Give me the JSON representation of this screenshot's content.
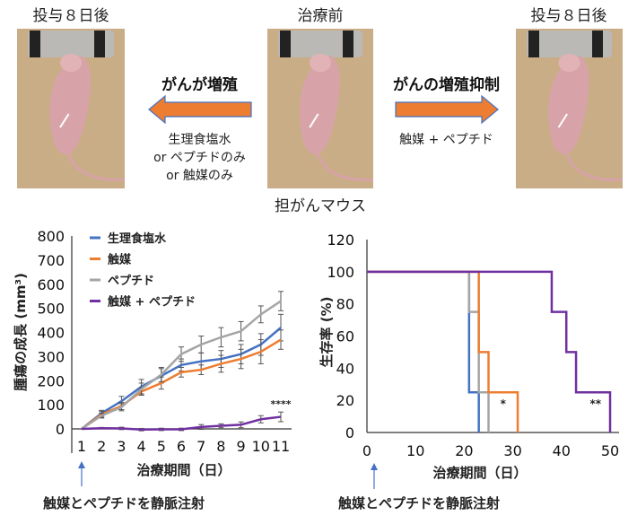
{
  "top": {
    "left_title": "投与８日後",
    "center_title": "治療前",
    "right_title": "投与８日後",
    "center_caption": "担がんマウス",
    "left_arrow_label": "がんが増殖",
    "right_arrow_label": "がんの増殖抑制",
    "left_conditions": [
      "生理食塩水",
      "or ペプチドのみ",
      "or 触媒のみ"
    ],
    "right_condition": "触媒 + ペプチド",
    "arrow_color": "#ED7D31"
  },
  "chart_data": [
    {
      "type": "line",
      "xlabel": "治療期間（日）",
      "ylabel": "腫瘍の成長 (mm³)",
      "x": [
        1,
        2,
        3,
        4,
        5,
        6,
        7,
        8,
        9,
        10,
        11
      ],
      "ylim": [
        0,
        800
      ],
      "yticks": [
        0,
        100,
        200,
        300,
        400,
        500,
        600,
        700,
        800
      ],
      "legend": "top-left",
      "annotation": "****",
      "footnote": "触媒とペプチドを静脈注射",
      "series": [
        {
          "name": "生理食塩水",
          "color": "#4472C4",
          "values": [
            0,
            65,
            115,
            175,
            220,
            265,
            280,
            290,
            310,
            350,
            420
          ],
          "err": [
            0,
            12,
            20,
            30,
            30,
            25,
            35,
            35,
            40,
            45,
            55
          ]
        },
        {
          "name": "触媒",
          "color": "#ED7D31",
          "values": [
            0,
            60,
            95,
            155,
            190,
            235,
            245,
            270,
            290,
            320,
            370
          ],
          "err": [
            0,
            12,
            15,
            15,
            25,
            20,
            20,
            35,
            40,
            50,
            40
          ]
        },
        {
          "name": "ペプチド",
          "color": "#A5A5A5",
          "values": [
            0,
            55,
            90,
            165,
            225,
            310,
            350,
            380,
            405,
            475,
            530
          ],
          "err": [
            0,
            10,
            15,
            25,
            30,
            30,
            35,
            40,
            40,
            35,
            40
          ]
        },
        {
          "name": "触媒 + ペプチド",
          "color": "#7030A0",
          "values": [
            0,
            3,
            2,
            -3,
            -2,
            -2,
            8,
            13,
            17,
            40,
            50
          ],
          "err": [
            0,
            3,
            5,
            5,
            5,
            5,
            10,
            8,
            12,
            15,
            20
          ]
        }
      ]
    },
    {
      "type": "line",
      "step": true,
      "xlabel": "治療期間（日）",
      "ylabel": "生存率 (%)",
      "xlim": [
        0,
        50
      ],
      "ylim": [
        0,
        120
      ],
      "xticks": [
        0,
        10,
        20,
        30,
        40,
        50
      ],
      "yticks": [
        0,
        20,
        40,
        60,
        80,
        100,
        120
      ],
      "footnote": "触媒とペプチドを静脈注射",
      "series": [
        {
          "color": "#4472C4",
          "points": [
            [
              0,
              100
            ],
            [
              21,
              100
            ],
            [
              21,
              25
            ],
            [
              23,
              25
            ],
            [
              23,
              0
            ]
          ]
        },
        {
          "color": "#A5A5A5",
          "points": [
            [
              0,
              100
            ],
            [
              21,
              100
            ],
            [
              21,
              75
            ],
            [
              23,
              75
            ],
            [
              23,
              25
            ],
            [
              25,
              25
            ],
            [
              25,
              0
            ]
          ]
        },
        {
          "color": "#ED7D31",
          "points": [
            [
              0,
              100
            ],
            [
              23,
              100
            ],
            [
              23,
              50
            ],
            [
              25,
              50
            ],
            [
              25,
              25
            ],
            [
              31,
              25
            ],
            [
              31,
              0
            ]
          ]
        },
        {
          "color": "#7030A0",
          "points": [
            [
              0,
              100
            ],
            [
              38,
              100
            ],
            [
              38,
              75
            ],
            [
              41,
              75
            ],
            [
              41,
              50
            ],
            [
              43,
              50
            ],
            [
              43,
              25
            ],
            [
              50,
              25
            ],
            [
              50,
              0
            ]
          ]
        }
      ],
      "annotations": [
        {
          "text": "*",
          "x": 28,
          "y": 18
        },
        {
          "text": "**",
          "x": 47,
          "y": 18
        }
      ]
    }
  ]
}
